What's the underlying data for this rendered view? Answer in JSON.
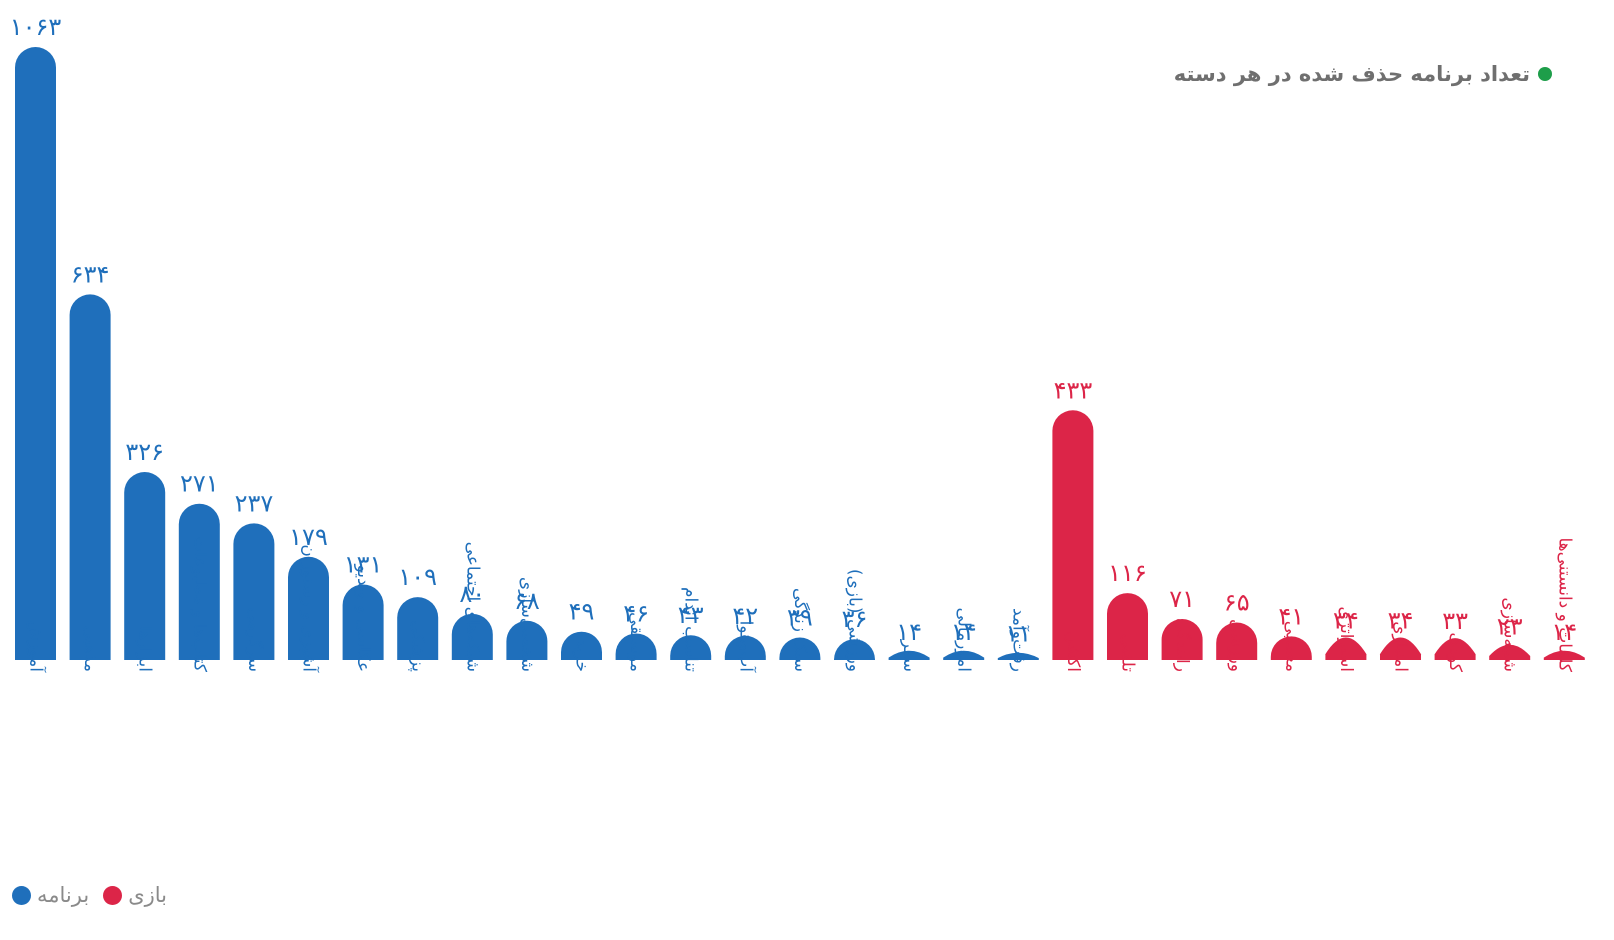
{
  "header_note": {
    "text": "تعداد برنامه حذف شده در هر دسته",
    "dot_color": "#1e9e4a"
  },
  "legend": [
    {
      "name": "برنامه",
      "color": "#1f6fbb"
    },
    {
      "name": "بازی",
      "color": "#dc2548"
    }
  ],
  "chart_data": {
    "type": "bar",
    "ylim": [
      0,
      1063
    ],
    "grid": false,
    "series": [
      {
        "name": "برنامه",
        "color": "#1f6fbb",
        "categories": [
          "آموزش",
          "مذهبی",
          "ابزارها",
          "کتاب‌ها و مطبوعات",
          "سرگرمی",
          "آشپزی و رستوران",
          "عکاسی و ویدیو",
          "پزشکی",
          "شبکه‌های اجتماعی",
          "شخصی‌سازی",
          "خرید",
          "موسیقی",
          "تناسب اندام",
          "آب‌وهوا",
          "سبک زندگی",
          "ورزشی (بازی)",
          "سفر",
          "امورمالی",
          "رفت‌وآمد"
        ],
        "values": [
          1063,
          634,
          326,
          271,
          237,
          179,
          131,
          109,
          80,
          68,
          49,
          46,
          43,
          42,
          39,
          36,
          14,
          14,
          11
        ],
        "value_labels": [
          "۱۰۶۳",
          "۶۳۴",
          "۳۲۶",
          "۲۷۱",
          "۲۳۷",
          "۱۷۹",
          "۱۳۱",
          "۱۰۹",
          "۸۰",
          "۶۸",
          "۴۹",
          "۴۶",
          "۴۳",
          "۴۲",
          "۳۹",
          "۳۶",
          "۱۴",
          "۱۴",
          "۱۱"
        ]
      },
      {
        "name": "بازی",
        "color": "#dc2548",
        "categories": [
          "اکشن",
          "تلفنی",
          "رانندگی",
          "ورزشی",
          "معمایی",
          "استراتژی",
          "امتیازی",
          "کودک",
          "شبیه‌سازی",
          "کلمات و دانستنی‌ها"
        ],
        "values": [
          433,
          116,
          71,
          65,
          41,
          34,
          34,
          33,
          23,
          14
        ],
        "value_labels": [
          "۴۳۳",
          "۱۱۶",
          "۷۱",
          "۶۵",
          "۴۱",
          "۳۴",
          "۳۴",
          "۳۳",
          "۲۳",
          "۱۴"
        ]
      }
    ]
  }
}
